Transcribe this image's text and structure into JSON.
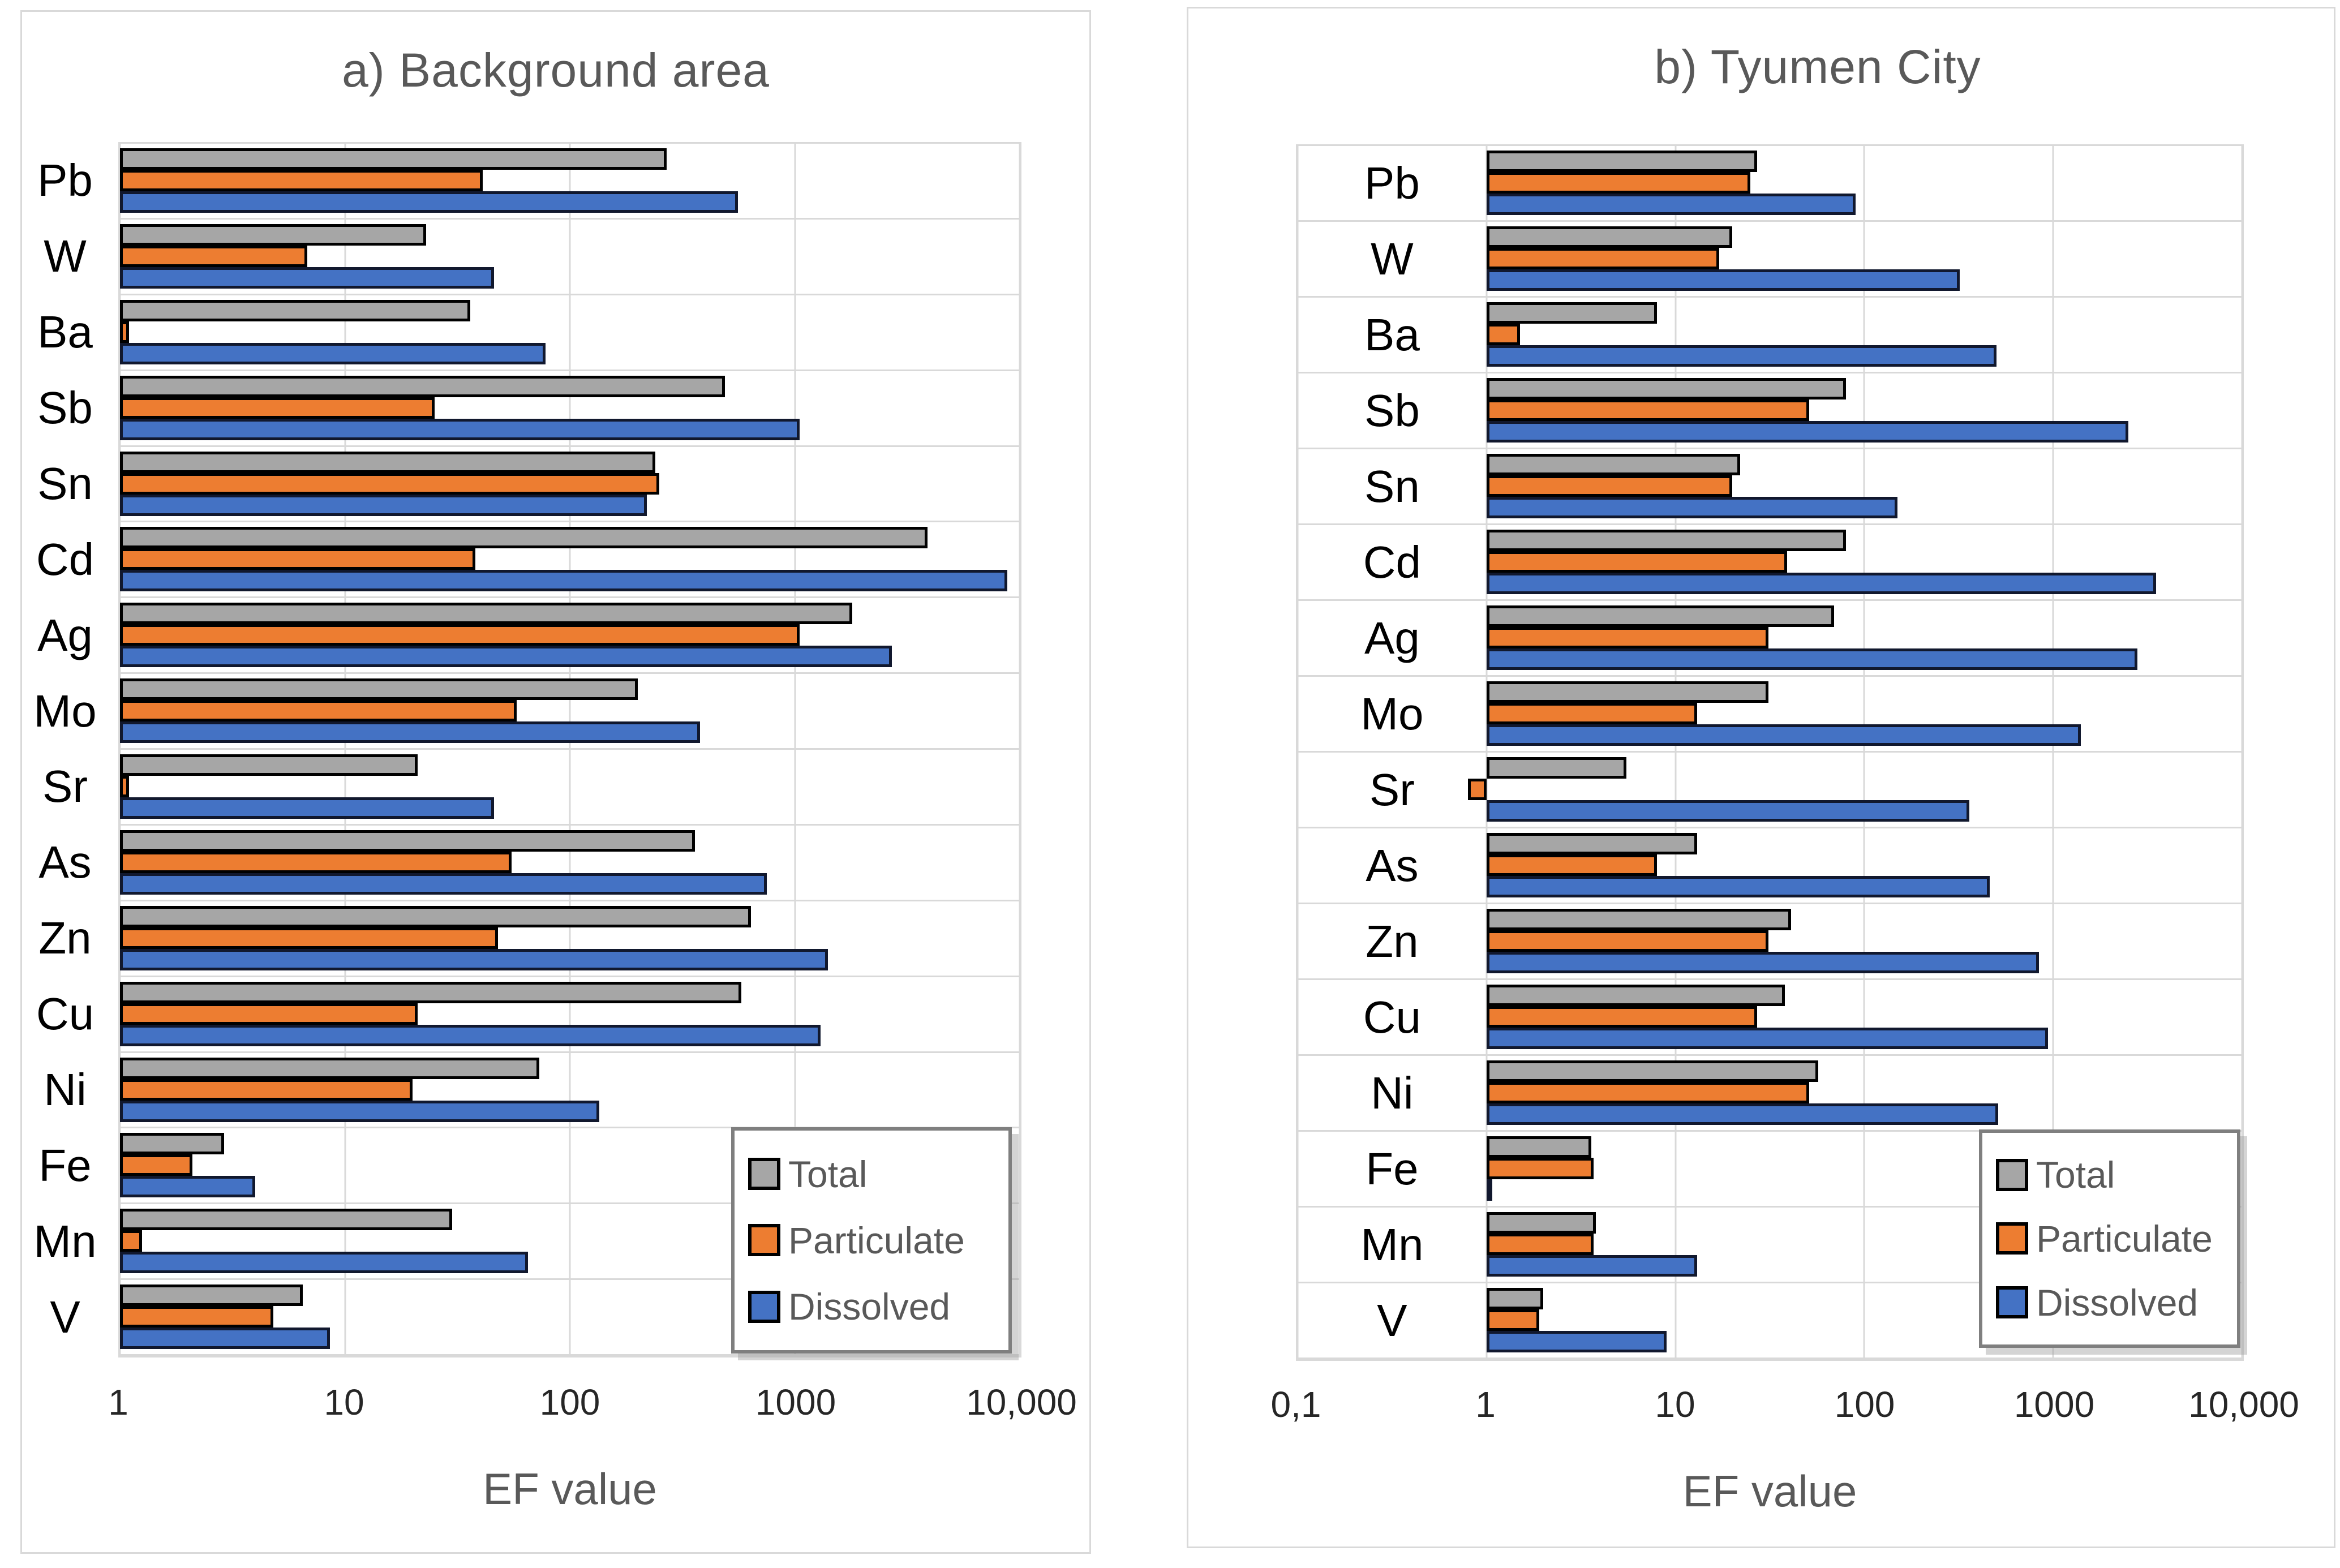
{
  "figure": {
    "type": "dual horizontal bar chart, logarithmic x-axis",
    "gridline_color": "#d9d9d9",
    "title_color": "#595959"
  },
  "chart_data": [
    {
      "type": "bar",
      "orientation": "horizontal",
      "title": "a) Background area",
      "xlabel": "EF value",
      "x_scale": "log",
      "axis_range": [
        1,
        10000
      ],
      "bar_base": 1,
      "labels_inside": false,
      "ticks": [
        "1",
        "10",
        "100",
        "1000",
        "10,000"
      ],
      "tick_values": [
        1,
        10,
        100,
        1000,
        10000
      ],
      "legend_position": "inside bottom-right",
      "categories": [
        "Pb",
        "W",
        "Ba",
        "Sb",
        "Sn",
        "Cd",
        "Ag",
        "Mo",
        "Sr",
        "As",
        "Zn",
        "Cu",
        "Ni",
        "Fe",
        "Mn",
        "V"
      ],
      "series": [
        {
          "name": "Total",
          "color": "#a6a6a6",
          "outline": "#000000",
          "values": [
            270,
            23,
            36,
            490,
            240,
            3900,
            1800,
            200,
            21,
            360,
            640,
            580,
            73,
            2.9,
            30,
            6.5
          ]
        },
        {
          "name": "Particulate",
          "color": "#ed7d31",
          "outline": "#000000",
          "values": [
            41,
            6.8,
            1.1,
            25,
            250,
            38,
            1050,
            58,
            1.1,
            55,
            48,
            21,
            20,
            2.1,
            1.25,
            4.8
          ]
        },
        {
          "name": "Dissolved",
          "color": "#4472c4",
          "outline": "#11182e",
          "values": [
            560,
            46,
            78,
            1050,
            220,
            8800,
            2700,
            380,
            46,
            750,
            1400,
            1300,
            135,
            4.0,
            65,
            8.6
          ]
        }
      ]
    },
    {
      "type": "bar",
      "orientation": "horizontal",
      "title": "b) Tyumen City",
      "xlabel": "EF value",
      "x_scale": "log",
      "axis_range": [
        0.1,
        10000
      ],
      "bar_base": 1,
      "labels_inside": true,
      "ticks": [
        "0,1",
        "1",
        "10",
        "100",
        "1000",
        "10,000"
      ],
      "tick_values": [
        0.1,
        1,
        10,
        100,
        1000,
        10000
      ],
      "legend_position": "inside bottom-right",
      "categories": [
        "Pb",
        "W",
        "Ba",
        "Sb",
        "Sn",
        "Cd",
        "Ag",
        "Mo",
        "Sr",
        "As",
        "Zn",
        "Cu",
        "Ni",
        "Fe",
        "Mn",
        "V"
      ],
      "series": [
        {
          "name": "Total",
          "color": "#a6a6a6",
          "outline": "#000000",
          "values": [
            27,
            20,
            8,
            80,
            22,
            80,
            69,
            31,
            5.5,
            13,
            41,
            38,
            57,
            3.6,
            3.8,
            2.0
          ]
        },
        {
          "name": "Particulate",
          "color": "#ed7d31",
          "outline": "#000000",
          "values": [
            25,
            17,
            1.5,
            51,
            20,
            39,
            31,
            13,
            0.8,
            8,
            31,
            27,
            51,
            3.7,
            3.7,
            1.9
          ]
        },
        {
          "name": "Dissolved",
          "color": "#4472c4",
          "outline": "#11182e",
          "values": [
            90,
            320,
            500,
            2500,
            150,
            3500,
            2800,
            1400,
            360,
            460,
            840,
            940,
            510,
            1.02,
            13,
            9
          ]
        }
      ]
    }
  ]
}
